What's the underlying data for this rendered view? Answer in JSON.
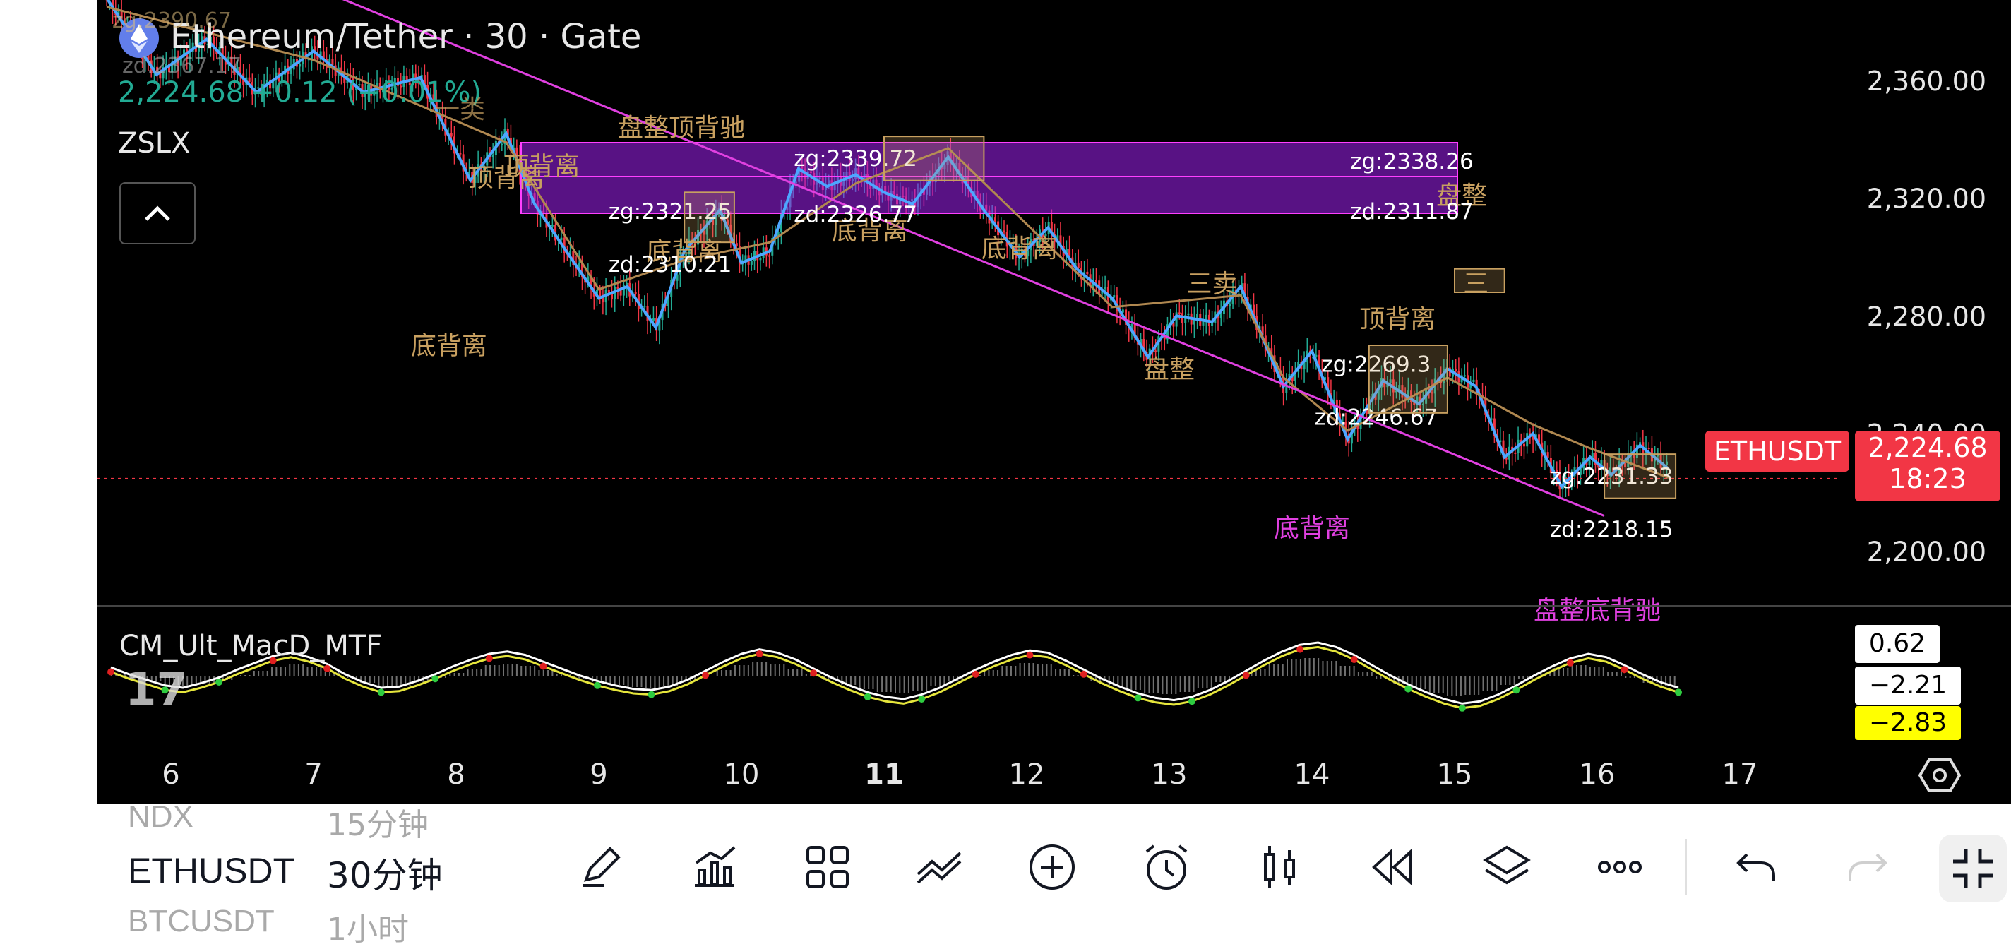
{
  "header": {
    "symbol_title": "Ethereum/Tether · 30 · Gate",
    "price": "2,224.68",
    "change": "+0.12 (+0.01%)",
    "indicator_name": "ZSLX",
    "overlay_zg": "zg:2390.67",
    "overlay_zd": "zd:2367.17",
    "overlay_label": "一类"
  },
  "price_badge": {
    "symbol": "ETHUSDT",
    "price": "2,224.68",
    "countdown": "18:23",
    "color": "#f23645"
  },
  "macd": {
    "name": "CM_Ult_MacD_MTF",
    "val1": "0.62",
    "val2": "−2.21",
    "val3": "−2.83",
    "hist_rows": [
      0.4,
      -0.2,
      -0.7,
      -1.2,
      -1.4,
      -1.0,
      -0.5,
      0.2,
      0.8,
      1.4,
      1.7,
      1.3,
      0.7,
      -0.2,
      -0.9,
      -1.4,
      -1.3,
      -0.8,
      -0.2,
      0.5,
      1.1,
      1.6,
      1.8,
      1.5,
      0.9,
      0.3,
      -0.3,
      -0.8,
      -1.2,
      -1.5,
      -1.6,
      -1.3,
      -0.7,
      0.1,
      0.9,
      1.6,
      2.0,
      1.7,
      1.1,
      0.3,
      -0.5,
      -1.2,
      -1.8,
      -2.2,
      -2.4,
      -2.0,
      -1.4,
      -0.6,
      0.2,
      0.9,
      1.5,
      1.9,
      1.7,
      1.0,
      0.2,
      -0.6,
      -1.3,
      -1.9,
      -2.3,
      -2.5,
      -2.2,
      -1.6,
      -0.8,
      0.1,
      1.0,
      1.8,
      2.4,
      2.6,
      2.2,
      1.5,
      0.6,
      -0.3,
      -1.1,
      -1.8,
      -2.4,
      -2.8,
      -2.6,
      -2.0,
      -1.2,
      -0.3,
      0.5,
      1.2,
      1.6,
      1.3,
      0.6,
      -0.2,
      -0.9,
      -1.4
    ],
    "macd_line_colors": [
      "#ffffff",
      "#e6e63c",
      "#e02020",
      "#2ecc40"
    ]
  },
  "toolbar": {
    "watch_prev": "NDX",
    "watch_prev_tf": "15分钟",
    "watch_sym": "ETHUSDT",
    "watch_tf": "30分钟",
    "watch_next": "BTCUSDT",
    "watch_next_tf": "1小时",
    "icons": [
      "pencil-icon",
      "chart-indicator-icon",
      "grid-icon",
      "drawing-lines-icon",
      "add-icon",
      "alarm-icon",
      "candle-icon",
      "replay-icon",
      "layers-icon",
      "more-icon",
      "undo-icon",
      "redo-icon",
      "fullscreen-icon"
    ]
  },
  "chart_data": {
    "type": "line",
    "title": "Ethereum/Tether · 30 · Gate",
    "x_ticks": [
      "6",
      "7",
      "8",
      "9",
      "10",
      "11",
      "12",
      "13",
      "14",
      "15",
      "16",
      "17"
    ],
    "y_ticks": [
      "2,360.00",
      "2,320.00",
      "2,280.00",
      "2,240.00",
      "2,200.00"
    ],
    "ylim": [
      2180,
      2390
    ],
    "xlim": [
      5.5,
      17.95
    ],
    "series": [
      {
        "color": "#4da6ff",
        "x": [
          5.55,
          5.9,
          6.25,
          6.6,
          7.0,
          7.35,
          7.75,
          8.1,
          8.35,
          8.55,
          8.8,
          9.0,
          9.2,
          9.4,
          9.6,
          9.85,
          10.0,
          10.2,
          10.4,
          10.6,
          10.8,
          11.0,
          11.2,
          11.45,
          11.7,
          11.95,
          12.15,
          12.35,
          12.6,
          12.85,
          13.05,
          13.3,
          13.5,
          13.8,
          14.0,
          14.25,
          14.5,
          14.75,
          14.95,
          15.15,
          15.35,
          15.55,
          15.75,
          15.95,
          16.1,
          16.3,
          16.5
        ],
        "y": [
          2388,
          2362,
          2374,
          2356,
          2370,
          2356,
          2361,
          2326,
          2342,
          2318,
          2300,
          2286,
          2290,
          2276,
          2302,
          2316,
          2298,
          2302,
          2330,
          2324,
          2328,
          2322,
          2318,
          2334,
          2316,
          2300,
          2310,
          2296,
          2286,
          2266,
          2280,
          2278,
          2290,
          2256,
          2268,
          2238,
          2258,
          2250,
          2262,
          2256,
          2232,
          2240,
          2222,
          2232,
          2226,
          2236,
          2228
        ]
      }
    ],
    "price_line": 2224.68
  }
}
